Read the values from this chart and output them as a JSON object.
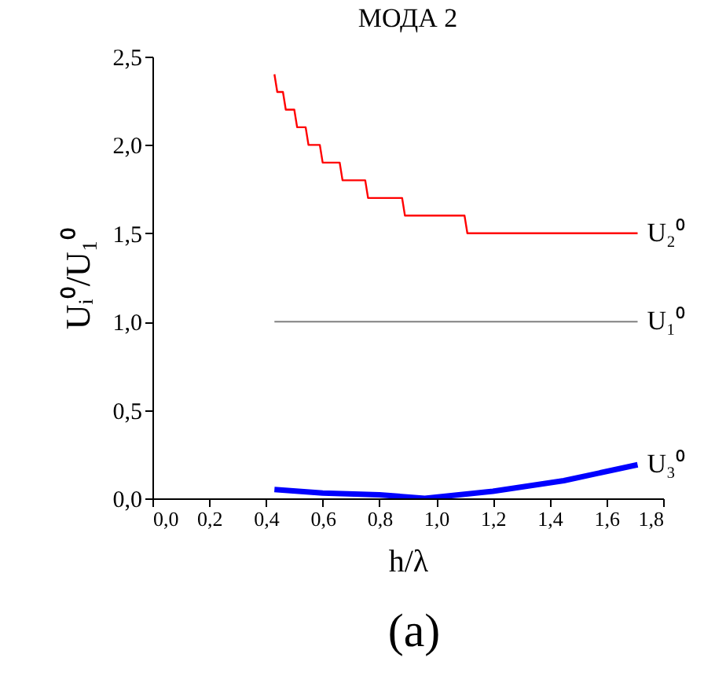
{
  "chart_data": {
    "type": "line",
    "title": "МОДА 2",
    "xlabel": "h/λ",
    "ylabel": "Uᵢ⁰/U₁⁰",
    "xlim": [
      0,
      1.8
    ],
    "ylim": [
      0,
      2.5
    ],
    "xticks": [
      {
        "value": 0,
        "label": "0,0"
      },
      {
        "value": 0.2,
        "label": "0,2"
      },
      {
        "value": 0.4,
        "label": "0,4"
      },
      {
        "value": 0.6,
        "label": "0,6"
      },
      {
        "value": 0.8,
        "label": "0,8"
      },
      {
        "value": 1.0,
        "label": "1,0"
      },
      {
        "value": 1.2,
        "label": "1,2"
      },
      {
        "value": 1.4,
        "label": "1,4"
      },
      {
        "value": 1.6,
        "label": "1,6"
      },
      {
        "value": 1.8,
        "label": "1,8"
      }
    ],
    "yticks": [
      {
        "value": 0,
        "label": "0,0"
      },
      {
        "value": 0.5,
        "label": "0,5"
      },
      {
        "value": 1.0,
        "label": "1,0"
      },
      {
        "value": 1.5,
        "label": "1,5"
      },
      {
        "value": 2.0,
        "label": "2,0"
      },
      {
        "value": 2.5,
        "label": "2,5"
      }
    ],
    "grid": false,
    "marker": "none",
    "line_style": "solid",
    "annotations": [
      "(a)"
    ],
    "series": [
      {
        "name": "U₂⁰",
        "color": "#ff0000",
        "x": [
          0.43,
          0.44,
          0.46,
          0.47,
          0.5,
          0.51,
          0.54,
          0.55,
          0.59,
          0.6,
          0.66,
          0.67,
          0.75,
          0.76,
          0.88,
          0.89,
          1.1,
          1.11,
          1.71
        ],
        "values": [
          2.4,
          2.3,
          2.3,
          2.2,
          2.2,
          2.1,
          2.1,
          2.0,
          2.0,
          1.9,
          1.9,
          1.8,
          1.8,
          1.7,
          1.7,
          1.6,
          1.6,
          1.5,
          1.5
        ]
      },
      {
        "name": "U₁⁰",
        "color": "#808080",
        "x": [
          0.43,
          1.71
        ],
        "values": [
          1.0,
          1.0
        ]
      },
      {
        "name": "U₃⁰",
        "color": "#0000ff",
        "x": [
          0.43,
          0.6,
          0.8,
          0.96,
          1.2,
          1.45,
          1.71
        ],
        "values": [
          0.05,
          0.03,
          0.02,
          0.0,
          0.04,
          0.1,
          0.19
        ]
      }
    ]
  }
}
